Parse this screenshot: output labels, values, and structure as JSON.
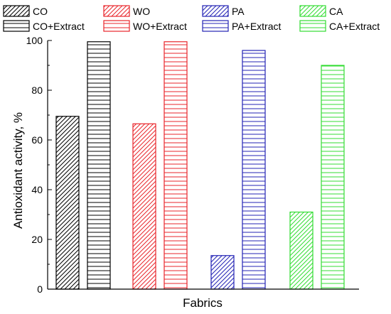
{
  "chart_data": {
    "type": "bar",
    "title": "",
    "xlabel": "Fabrics",
    "ylabel": "Antioxidant activity, %",
    "ylim": [
      0,
      100
    ],
    "yticks": [
      0,
      20,
      40,
      60,
      80,
      100
    ],
    "grid": false,
    "legend_position": "top",
    "groups": [
      {
        "color": "#000000",
        "bars": [
          {
            "name": "CO",
            "value": 69.5,
            "pattern": "diagonal"
          },
          {
            "name": "CO+Extract",
            "value": 99.5,
            "pattern": "horizontal"
          }
        ]
      },
      {
        "color": "#e8262b",
        "bars": [
          {
            "name": "WO",
            "value": 66.5,
            "pattern": "diagonal"
          },
          {
            "name": "WO+Extract",
            "value": 99.5,
            "pattern": "horizontal"
          }
        ]
      },
      {
        "color": "#2323b5",
        "bars": [
          {
            "name": "PA",
            "value": 13.5,
            "pattern": "diagonal"
          },
          {
            "name": "PA+Extract",
            "value": 96,
            "pattern": "horizontal"
          }
        ]
      },
      {
        "color": "#33dd33",
        "bars": [
          {
            "name": "CA",
            "value": 31,
            "pattern": "diagonal"
          },
          {
            "name": "CA+Extract",
            "value": 90,
            "pattern": "horizontal"
          }
        ]
      }
    ]
  }
}
